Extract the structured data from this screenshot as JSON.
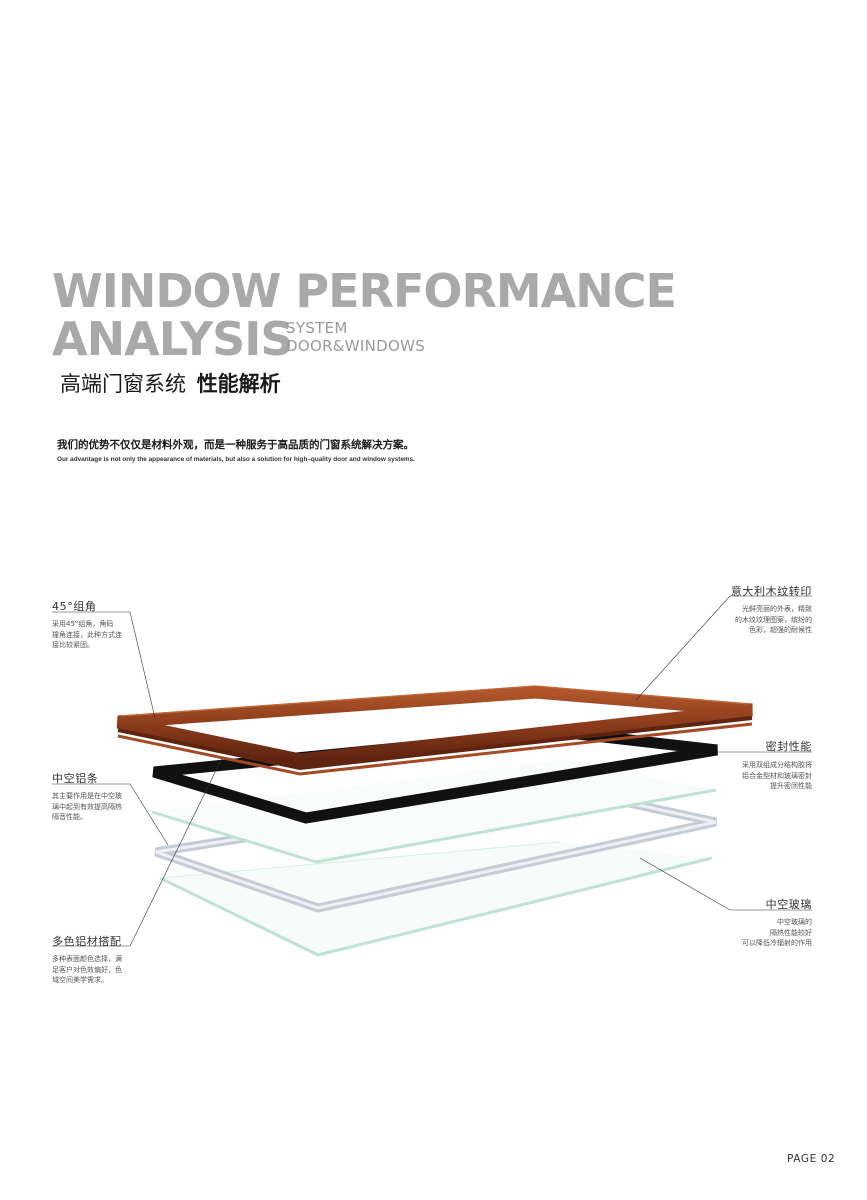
{
  "title": {
    "line1": "WINDOW PERFORMANCE",
    "line2": "ANALYSIS",
    "sub1": "SYSTEM",
    "sub2": "DOOR&WINDOWS"
  },
  "heading_cn": {
    "light": "高端门窗系统",
    "bold": "性能解析"
  },
  "intro": {
    "cn": "我们的优势不仅仅是材料外观，而是一种服务于高品质的门窗系统解决方案。",
    "en": "Our advantage is not only the appearance of materials, but also a solution for high–quality door and window systems."
  },
  "labels": {
    "corner": {
      "title": "45°组角",
      "lines": [
        "采用45°组角，角码",
        "撞角连接，此种方式连",
        "接比较紧固。"
      ]
    },
    "spacer": {
      "title": "中空铝条",
      "lines": [
        "其主要作用是在中空玻",
        "璃中起到有效提高隔热",
        "隔音性能。"
      ]
    },
    "color": {
      "title": "多色铝材搭配",
      "lines": [
        "多种表面颜色选择，满",
        "足客户对色效偏好，色",
        "域空间美学需求。"
      ]
    },
    "wood": {
      "title": "意大利木纹转印",
      "lines": [
        "光鲜亮丽的外表，精致",
        "的木纹纹理图案，缤纷的",
        "色彩，超强的耐候性"
      ]
    },
    "seal": {
      "title": "密封性能",
      "lines": [
        "采用双组成分结构胶将",
        "铝合金型材和玻璃密封",
        "提升密闭性能"
      ]
    },
    "glass": {
      "title": "中空玻璃",
      "lines": [
        "中空玻璃的",
        "隔热性能较好",
        "可以降低冷辐射的作用"
      ]
    }
  },
  "colors": {
    "frame_wood": "#8a3a1a",
    "seal_black": "#111111",
    "glass_edge": "#bfe3d3",
    "spacer_edge": "#c7cbd6"
  },
  "page": "PAGE  02"
}
